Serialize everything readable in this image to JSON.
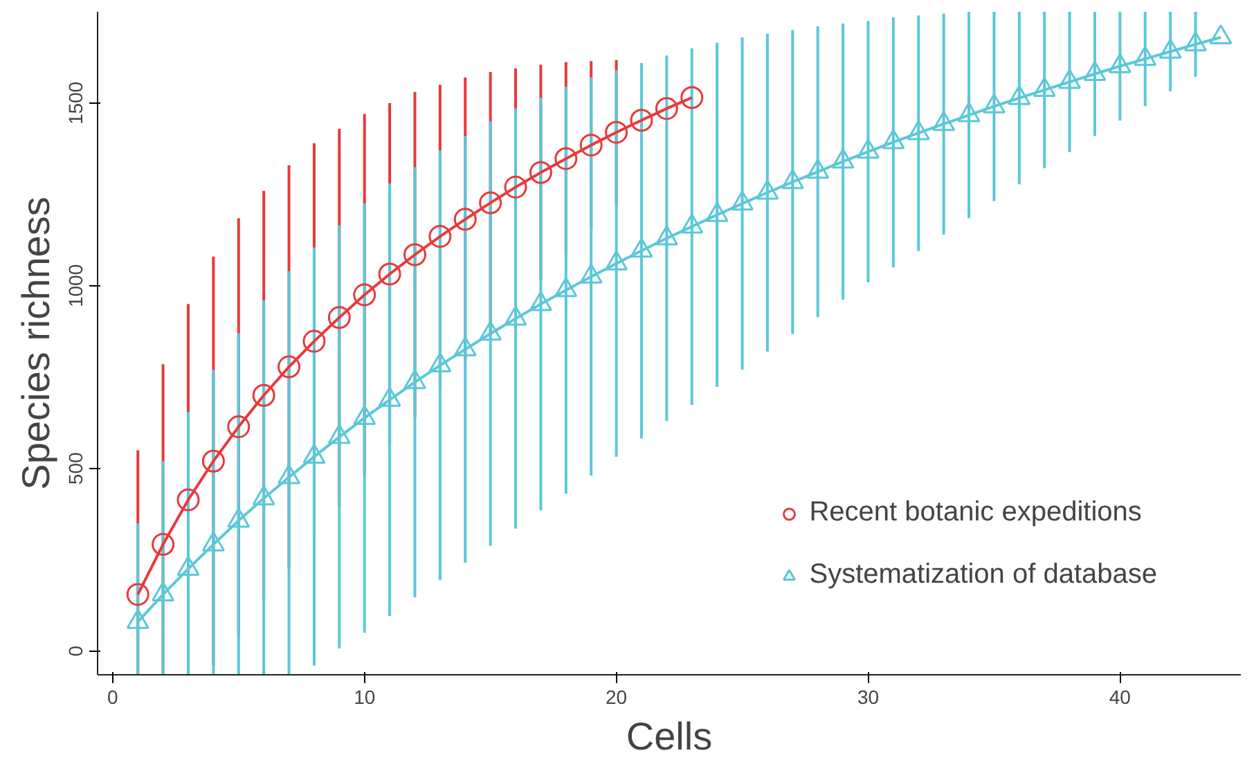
{
  "chart_data": {
    "type": "line",
    "xlabel": "Cells",
    "ylabel": "Species richness",
    "xlim": [
      -0.6,
      44.8
    ],
    "ylim": [
      -65,
      1750
    ],
    "xticks": [
      0,
      10,
      20,
      30,
      40
    ],
    "yticks": [
      0,
      500,
      1000,
      1500
    ],
    "grid": false,
    "legend": "bottom right",
    "series": [
      {
        "name": "Recent botanic expeditions",
        "color": "#e8393b",
        "marker": "circle",
        "x": [
          1,
          2,
          3,
          4,
          5,
          6,
          7,
          8,
          9,
          10,
          11,
          12,
          13,
          14,
          15,
          16,
          17,
          18,
          19,
          20,
          21,
          22,
          23
        ],
        "values": [
          155,
          292,
          414,
          520,
          614,
          700,
          778,
          848,
          913,
          975,
          1032,
          1085,
          1135,
          1182,
          1227,
          1270,
          1310,
          1348,
          1385,
          1420,
          1453,
          1485,
          1515
        ],
        "errors": [
          [
            -65,
            550
          ],
          [
            -65,
            785
          ],
          [
            -65,
            950
          ],
          [
            -40,
            1080
          ],
          [
            43,
            1185
          ],
          [
            140,
            1260
          ],
          [
            226,
            1330
          ],
          [
            306,
            1390
          ],
          [
            396,
            1430
          ],
          [
            480,
            1470
          ],
          [
            564,
            1500
          ],
          [
            640,
            1530
          ],
          [
            720,
            1550
          ],
          [
            794,
            1570
          ],
          [
            869,
            1585
          ],
          [
            945,
            1595
          ],
          [
            1015,
            1605
          ],
          [
            1084,
            1612
          ],
          [
            1155,
            1615
          ],
          [
            1222,
            1618
          ],
          null,
          null,
          null
        ]
      },
      {
        "name": "Systematization of database",
        "color": "#5bc8d8",
        "marker": "triangle",
        "x": [
          1,
          2,
          3,
          4,
          5,
          6,
          7,
          8,
          9,
          10,
          11,
          12,
          13,
          14,
          15,
          16,
          17,
          18,
          19,
          20,
          21,
          22,
          23,
          24,
          25,
          26,
          27,
          28,
          29,
          30,
          31,
          32,
          33,
          34,
          35,
          36,
          37,
          38,
          39,
          40,
          41,
          42,
          43,
          44
        ],
        "values": [
          80,
          155,
          225,
          292,
          357,
          418,
          476,
          532,
          586,
          638,
          688,
          736,
          782,
          826,
          869,
          910,
          950,
          988,
          1025,
          1061,
          1096,
          1130,
          1162,
          1194,
          1225,
          1255,
          1284,
          1312,
          1340,
          1367,
          1393,
          1418,
          1443,
          1467,
          1491,
          1514,
          1536,
          1558,
          1580,
          1601,
          1621,
          1641,
          1661,
          1680
        ],
        "errors": [
          [
            -65,
            350
          ],
          [
            -65,
            520
          ],
          [
            -65,
            655
          ],
          [
            -65,
            770
          ],
          [
            -65,
            870
          ],
          [
            -65,
            960
          ],
          [
            -65,
            1040
          ],
          [
            -40,
            1105
          ],
          [
            7,
            1165
          ],
          [
            50,
            1225
          ],
          [
            96,
            1280
          ],
          [
            147,
            1325
          ],
          [
            194,
            1370
          ],
          [
            242,
            1410
          ],
          [
            288,
            1450
          ],
          [
            335,
            1485
          ],
          [
            385,
            1515
          ],
          [
            431,
            1545
          ],
          [
            480,
            1570
          ],
          [
            532,
            1590
          ],
          [
            582,
            1610
          ],
          [
            630,
            1630
          ],
          [
            674,
            1650
          ],
          [
            723,
            1665
          ],
          [
            770,
            1680
          ],
          [
            820,
            1690
          ],
          [
            868,
            1700
          ],
          [
            914,
            1710
          ],
          [
            962,
            1718
          ],
          [
            1009,
            1725
          ],
          [
            1050,
            1735
          ],
          [
            1095,
            1740
          ],
          [
            1140,
            1745
          ],
          [
            1185,
            1750
          ],
          [
            1232,
            1750
          ],
          [
            1278,
            1750
          ],
          [
            1322,
            1750
          ],
          [
            1366,
            1750
          ],
          [
            1410,
            1750
          ],
          [
            1452,
            1750
          ],
          [
            1492,
            1750
          ],
          [
            1532,
            1750
          ],
          [
            1572,
            1750
          ],
          null
        ]
      }
    ]
  }
}
